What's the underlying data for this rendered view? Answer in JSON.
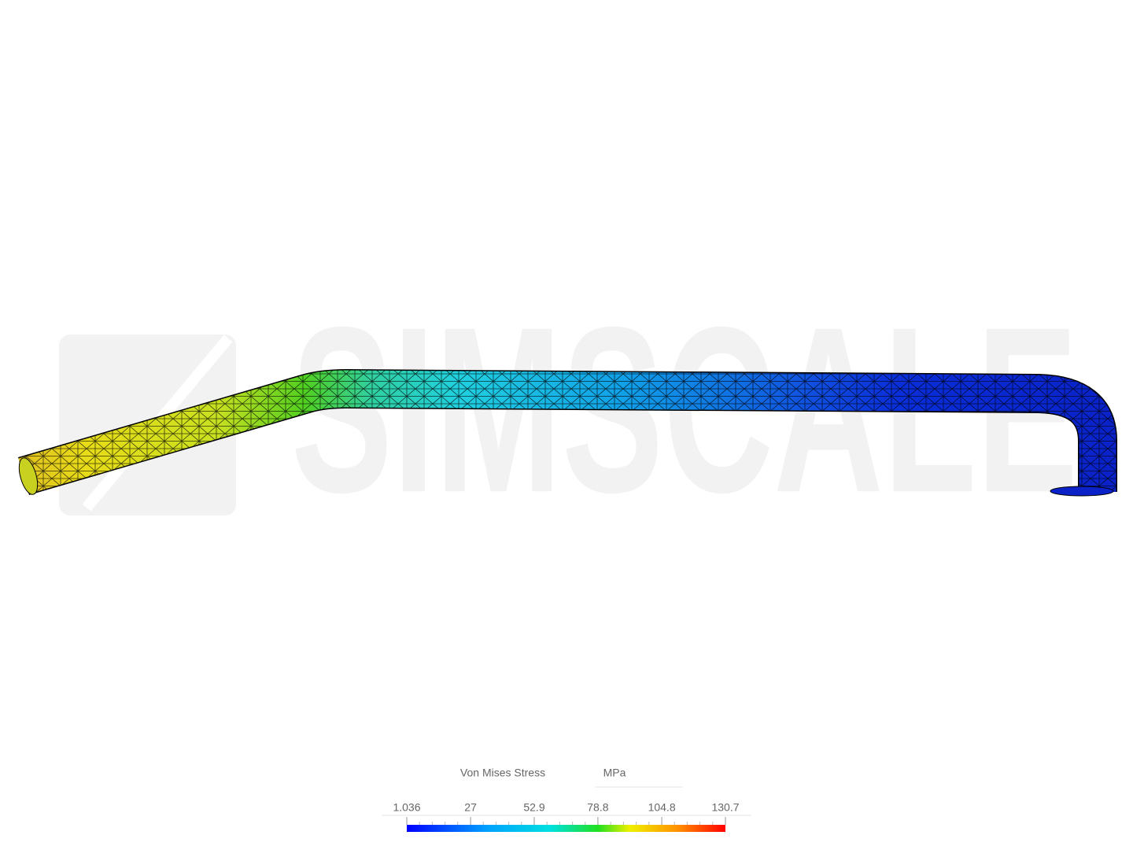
{
  "watermark": "SIMSCALE",
  "legend": {
    "title": "Von Mises Stress",
    "unit": "MPa",
    "ticks": [
      1.036,
      27,
      52.9,
      78.8,
      104.8,
      130.7
    ]
  }
}
